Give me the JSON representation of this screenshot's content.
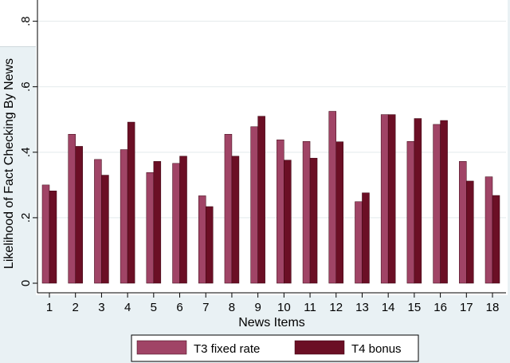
{
  "chart_data": {
    "type": "bar",
    "categories": [
      "1",
      "2",
      "3",
      "4",
      "5",
      "6",
      "7",
      "8",
      "9",
      "10",
      "11",
      "12",
      "13",
      "14",
      "15",
      "16",
      "17",
      "18"
    ],
    "series": [
      {
        "name": "T3 fixed rate",
        "color": "#a04466",
        "values": [
          0.3,
          0.455,
          0.378,
          0.408,
          0.338,
          0.366,
          0.267,
          0.455,
          0.478,
          0.438,
          0.433,
          0.525,
          0.249,
          0.515,
          0.433,
          0.485,
          0.372,
          0.325
        ]
      },
      {
        "name": "T4 bonus",
        "color": "#6b0f25",
        "values": [
          0.282,
          0.418,
          0.33,
          0.492,
          0.372,
          0.388,
          0.234,
          0.388,
          0.51,
          0.376,
          0.382,
          0.432,
          0.276,
          0.515,
          0.503,
          0.497,
          0.312,
          0.268
        ]
      }
    ],
    "yticks": [
      0,
      0.2,
      0.4,
      0.6,
      0.8
    ],
    "ytick_labels": [
      "0",
      ".2",
      ".4",
      ".6",
      ".8"
    ],
    "ylim": [
      0,
      0.86
    ],
    "xlabel": "News Items",
    "ylabel": "Likelihood of Fact Checking By News",
    "grid": true,
    "legend": "bottom"
  }
}
